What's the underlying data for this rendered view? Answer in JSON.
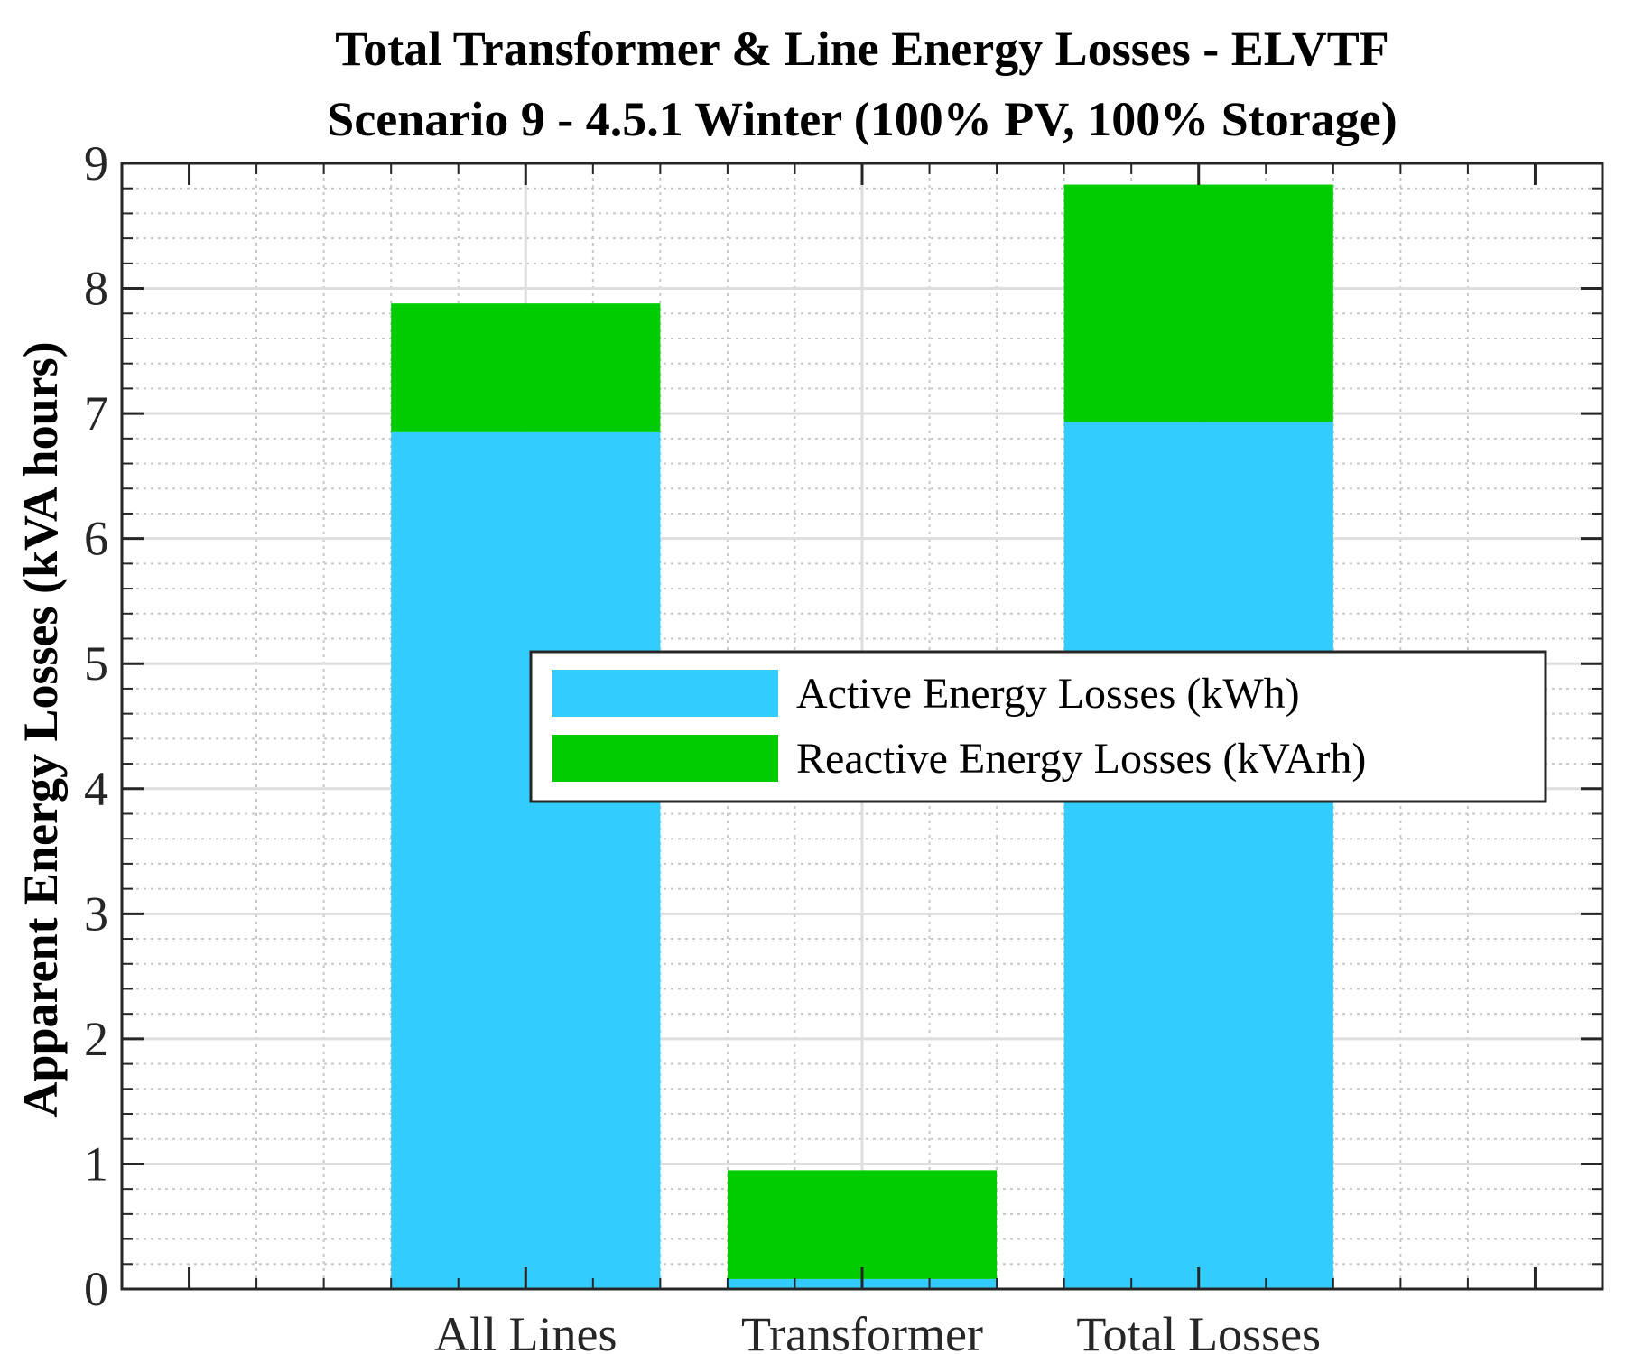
{
  "chart_data": {
    "type": "bar",
    "stacked": true,
    "title": [
      "Total Transformer & Line Energy Losses - ELVTF",
      "Scenario 9 - 4.5.1 Winter (100% PV, 100% Storage)"
    ],
    "xlabel": "",
    "ylabel": "Apparent Energy Losses (kVA hours)",
    "categories": [
      "All Lines",
      "Transformer",
      "Total Losses"
    ],
    "series": [
      {
        "name": "Active Energy Losses (kWh)",
        "color": "#33ccff",
        "values": [
          6.85,
          0.08,
          6.93
        ]
      },
      {
        "name": "Reactive Energy Losses (kVArh)",
        "color": "#00cc00",
        "values": [
          1.03,
          0.87,
          1.9
        ]
      }
    ],
    "ylim": [
      0,
      9
    ],
    "yticks": [
      "0",
      "1",
      "2",
      "3",
      "4",
      "5",
      "6",
      "7",
      "8",
      "9"
    ],
    "grid": true,
    "minor_grid": true,
    "legend": "center-right"
  }
}
